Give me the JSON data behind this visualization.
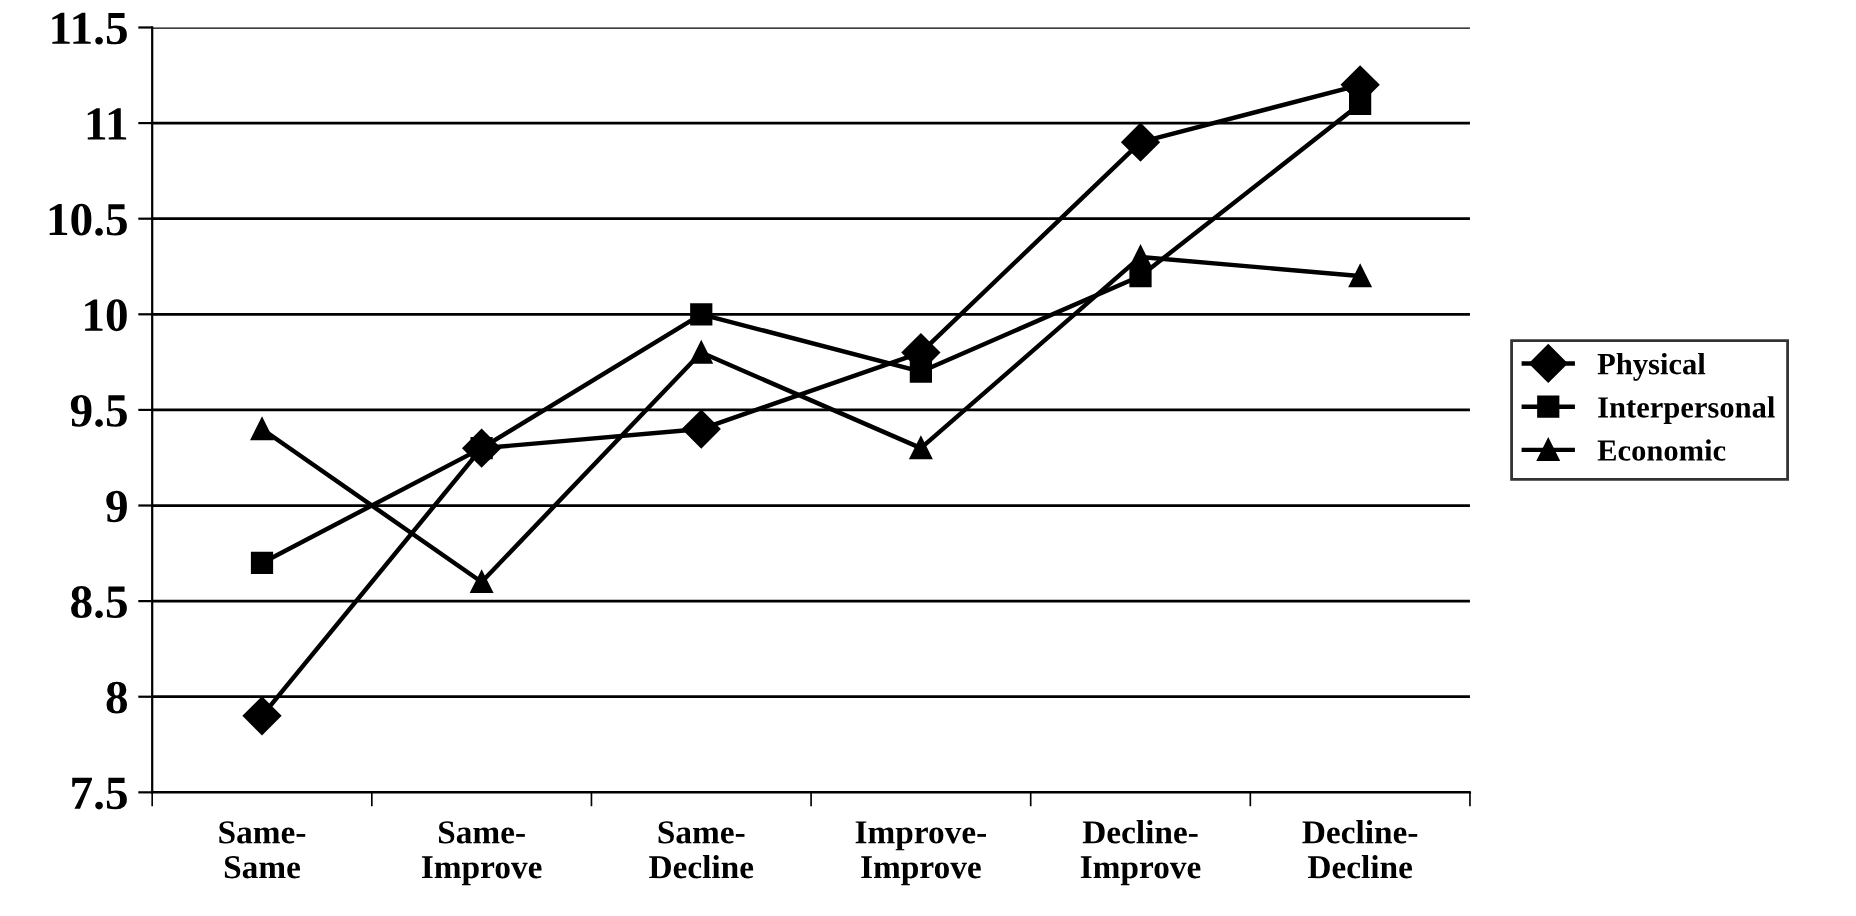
{
  "chart_data": {
    "type": "line",
    "categories": [
      "Same-\nSame",
      "Same-\nImprove",
      "Same-\nDecline",
      "Improve-\nImprove",
      "Decline-\nImprove",
      "Decline-\nDecline"
    ],
    "series": [
      {
        "name": "Physical",
        "color": "#000000",
        "marker": "diamond",
        "values": [
          7.9,
          9.3,
          9.4,
          9.8,
          10.9,
          11.2
        ]
      },
      {
        "name": "Interpersonal",
        "color": "#000000",
        "marker": "square",
        "values": [
          8.7,
          9.3,
          10.0,
          9.7,
          10.2,
          11.1
        ]
      },
      {
        "name": "Economic",
        "color": "#000000",
        "marker": "triangle",
        "values": [
          9.4,
          8.6,
          9.8,
          9.3,
          10.3,
          10.2
        ]
      }
    ],
    "ylim": [
      7.5,
      11.5
    ],
    "yticks": [
      7.5,
      8,
      8.5,
      9,
      9.5,
      10,
      10.5,
      11,
      11.5
    ],
    "grid": "y",
    "legend": "right",
    "line_style": "solid"
  }
}
